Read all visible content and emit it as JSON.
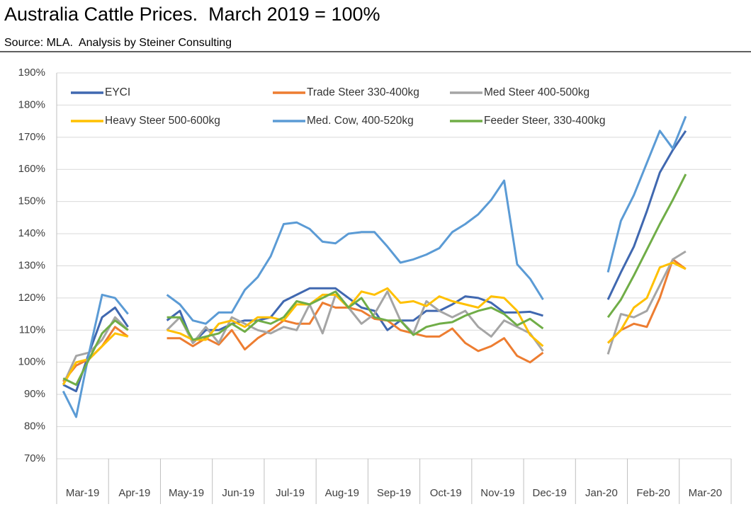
{
  "chart_data": {
    "type": "line",
    "title": "Australia Cattle Prices.  March 2019 = 100%",
    "subtitle": "Source: MLA.  Analysis by Steiner Consulting",
    "categories": [
      null,
      "Mar-19",
      null,
      null,
      null,
      "Apr-19",
      null,
      null,
      null,
      "May-19",
      null,
      null,
      null,
      "Jun-19",
      null,
      null,
      null,
      "Jul-19",
      null,
      null,
      null,
      "Aug-19",
      null,
      null,
      null,
      "Sep-19",
      null,
      null,
      null,
      "Oct-19",
      null,
      null,
      null,
      "Nov-19",
      null,
      null,
      null,
      "Dec-19",
      null,
      null,
      null,
      "Jan-20",
      null,
      null,
      null,
      "Feb-20",
      null,
      null,
      null,
      "Mar-20",
      null,
      null
    ],
    "ylim": [
      70,
      190
    ],
    "yticks": [
      {
        "value": 70,
        "label": "70%"
      },
      {
        "value": 80,
        "label": "80%"
      },
      {
        "value": 90,
        "label": "90%"
      },
      {
        "value": 100,
        "label": "100%"
      },
      {
        "value": 110,
        "label": "110%"
      },
      {
        "value": 120,
        "label": "120%"
      },
      {
        "value": 130,
        "label": "130%"
      },
      {
        "value": 140,
        "label": "140%"
      },
      {
        "value": 150,
        "label": "150%"
      },
      {
        "value": 160,
        "label": "160%"
      },
      {
        "value": 170,
        "label": "170%"
      },
      {
        "value": 180,
        "label": "180%"
      },
      {
        "value": 190,
        "label": "190%"
      }
    ],
    "grid": true,
    "legend": "top",
    "series": [
      {
        "name": "EYCI",
        "color": "#4068b0",
        "values": [
          93,
          91,
          103,
          114,
          117,
          111,
          null,
          null,
          113,
          116,
          106,
          110,
          110,
          112,
          113,
          113,
          114,
          119,
          121,
          123,
          123,
          123,
          120,
          117,
          116,
          110,
          113,
          113,
          116,
          116,
          118,
          120.5,
          120,
          118.5,
          115.5,
          115.5,
          115.7,
          114.5,
          null,
          null,
          null,
          null,
          119.5,
          128,
          136,
          147,
          159,
          166,
          172,
          null,
          null,
          null
        ]
      },
      {
        "name": "Trade Steer 330-400kg",
        "color": "#ed7d31",
        "values": [
          94,
          99,
          101,
          105,
          111,
          108,
          null,
          null,
          107.5,
          107.5,
          105,
          107.5,
          105.5,
          110,
          104,
          107.5,
          110,
          113,
          112,
          112,
          118.5,
          117,
          117,
          116,
          113.5,
          113,
          110,
          109,
          108,
          108,
          110.5,
          106,
          103.5,
          105,
          107.5,
          102,
          100,
          103,
          null,
          null,
          null,
          null,
          106,
          110,
          112,
          111,
          120,
          132,
          129,
          null,
          null,
          null
        ]
      },
      {
        "name": "Med Steer 400-500kg",
        "color": "#a5a5a5",
        "values": [
          93,
          102,
          103,
          107,
          114,
          110,
          null,
          null,
          110,
          114,
          106,
          111,
          106,
          114,
          112,
          110,
          109,
          111,
          110,
          118,
          109,
          121,
          117,
          112,
          115,
          122,
          113,
          109,
          119,
          116,
          114,
          116,
          111,
          108,
          113,
          111,
          109,
          103.5,
          null,
          null,
          null,
          null,
          102.5,
          115,
          114,
          116,
          124,
          132,
          134.5,
          null,
          null,
          null
        ]
      },
      {
        "name": "Heavy Steer 500-600kg",
        "color": "#ffc000",
        "values": [
          93,
          100,
          101,
          105,
          109,
          108,
          null,
          null,
          110,
          109,
          107,
          107,
          112,
          113,
          111,
          114,
          114,
          113,
          118,
          118,
          121,
          121,
          117,
          122,
          121,
          123,
          118.5,
          119,
          117.5,
          120.5,
          119,
          118,
          117,
          120.5,
          120,
          116,
          108.5,
          105,
          null,
          null,
          null,
          null,
          106,
          110,
          117,
          120,
          129.5,
          131,
          129,
          null,
          null,
          null
        ]
      },
      {
        "name": "Med. Cow, 400-520kg",
        "color": "#5b9bd5",
        "values": [
          91,
          83,
          103,
          121,
          120,
          115,
          null,
          null,
          121,
          118,
          113,
          112,
          115.5,
          115.5,
          122.5,
          126.5,
          133,
          143,
          143.5,
          141.5,
          137.5,
          137,
          140,
          140.5,
          140.5,
          136,
          131,
          132,
          133.5,
          135.5,
          140.5,
          143,
          146,
          150.5,
          156.5,
          130.5,
          126,
          119.5,
          null,
          null,
          null,
          null,
          128,
          144,
          152,
          162,
          172,
          166.5,
          176.5,
          null,
          null,
          null
        ]
      },
      {
        "name": "Feeder Steer, 330-400kg",
        "color": "#70ad47",
        "values": [
          95,
          93,
          101,
          109,
          113,
          110,
          null,
          null,
          114,
          114,
          107,
          108,
          109,
          112,
          109.5,
          113,
          112,
          114,
          119,
          118,
          120,
          122,
          117,
          120,
          114,
          113,
          113,
          108.5,
          111,
          112,
          112.5,
          114.5,
          116,
          117,
          115,
          111.5,
          113.5,
          110.5,
          null,
          null,
          null,
          null,
          114,
          119.5,
          127,
          135,
          143,
          150.5,
          158.5,
          null,
          null,
          null
        ]
      }
    ]
  }
}
